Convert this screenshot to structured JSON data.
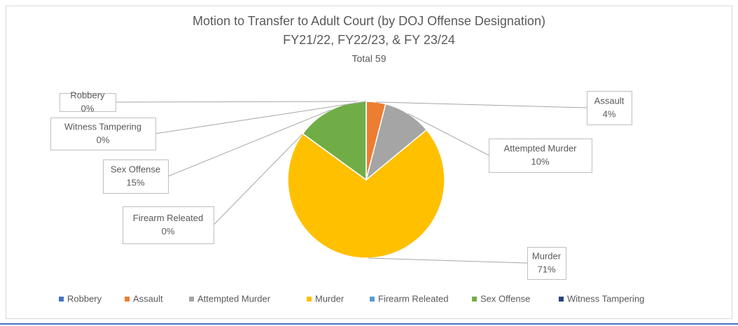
{
  "chart_data": {
    "type": "pie",
    "title": "Motion to Transfer to Adult Court (by DOJ Offense Designation)",
    "subtitle": "FY21/22, FY22/23, & FY 23/24",
    "annotation": "Total 59",
    "categories": [
      "Robbery",
      "Assault",
      "Attempted Murder",
      "Murder",
      "Firearm Releated",
      "Sex Offense",
      "Witness Tampering"
    ],
    "values": [
      0,
      4,
      10,
      71,
      0,
      15,
      0
    ],
    "value_labels": [
      "0%",
      "4%",
      "10%",
      "71%",
      "0%",
      "15%",
      "0%"
    ],
    "colors": [
      "#4472c4",
      "#ed7d31",
      "#a5a5a5",
      "#ffc000",
      "#5b9bd5",
      "#70ad47",
      "#264478"
    ],
    "legend": "bottom"
  }
}
